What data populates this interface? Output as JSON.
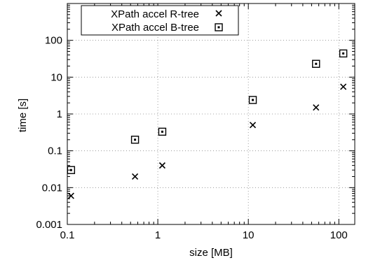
{
  "chart_data": {
    "type": "scatter",
    "xlabel": "size [MB]",
    "ylabel": "time [s]",
    "x_scale": "log",
    "y_scale": "log",
    "xlim": [
      0.1,
      150
    ],
    "ylim": [
      0.001,
      1000
    ],
    "grid": true,
    "legend_position": "top-left",
    "x_ticks": [
      "0.1",
      "1",
      "10",
      "100"
    ],
    "y_ticks": [
      "0.001",
      "0.01",
      "0.1",
      "1",
      "10",
      "100"
    ],
    "series": [
      {
        "name": "XPath accel R-tree",
        "marker": "cross",
        "x": [
          0.11,
          0.56,
          1.12,
          11.2,
          56,
          112
        ],
        "y": [
          0.006,
          0.02,
          0.04,
          0.5,
          1.5,
          5.5
        ]
      },
      {
        "name": "XPath accel B-tree",
        "marker": "square",
        "x": [
          0.11,
          0.56,
          1.12,
          11.2,
          56,
          112
        ],
        "y": [
          0.03,
          0.2,
          0.33,
          2.4,
          23,
          44
        ]
      }
    ]
  }
}
